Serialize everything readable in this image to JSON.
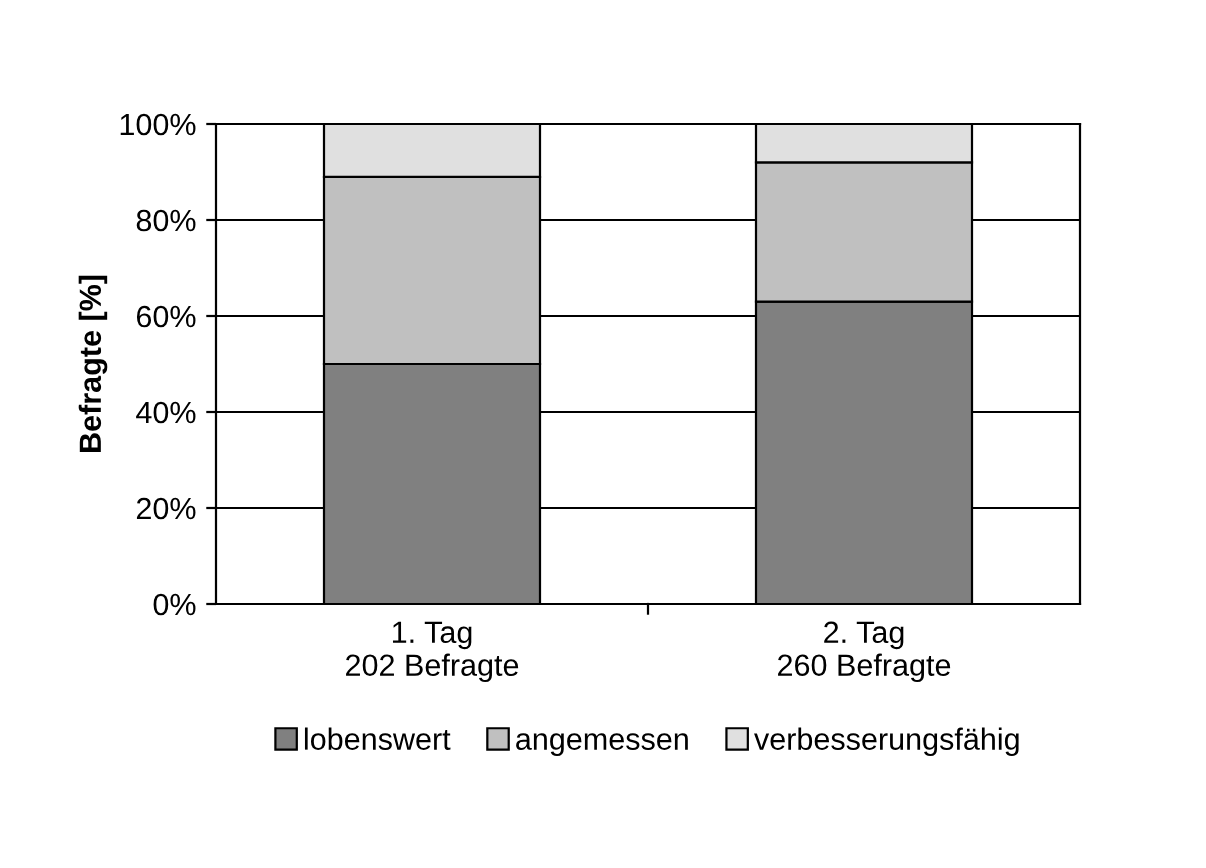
{
  "chart_data": {
    "type": "bar",
    "stacked": true,
    "ylabel": "Befragte [%]",
    "categories": [
      "1. Tag\n202 Befragte",
      "2. Tag\n260 Befragte"
    ],
    "series": [
      {
        "name": "lobenswert",
        "color": "#808080",
        "values": [
          50,
          63
        ]
      },
      {
        "name": "angemessen",
        "color": "#c0c0c0",
        "values": [
          39,
          29
        ]
      },
      {
        "name": "verbesserungsfähig",
        "color": "#e0e0e0",
        "values": [
          11,
          8
        ]
      }
    ],
    "ylim": [
      0,
      100
    ],
    "yticks": [
      {
        "value": 0,
        "label": "0%"
      },
      {
        "value": 20,
        "label": "20%"
      },
      {
        "value": 40,
        "label": "40%"
      },
      {
        "value": 60,
        "label": "60%"
      },
      {
        "value": 80,
        "label": "80%"
      },
      {
        "value": 100,
        "label": "100%"
      }
    ],
    "grid": "y",
    "legend": "bottom"
  }
}
